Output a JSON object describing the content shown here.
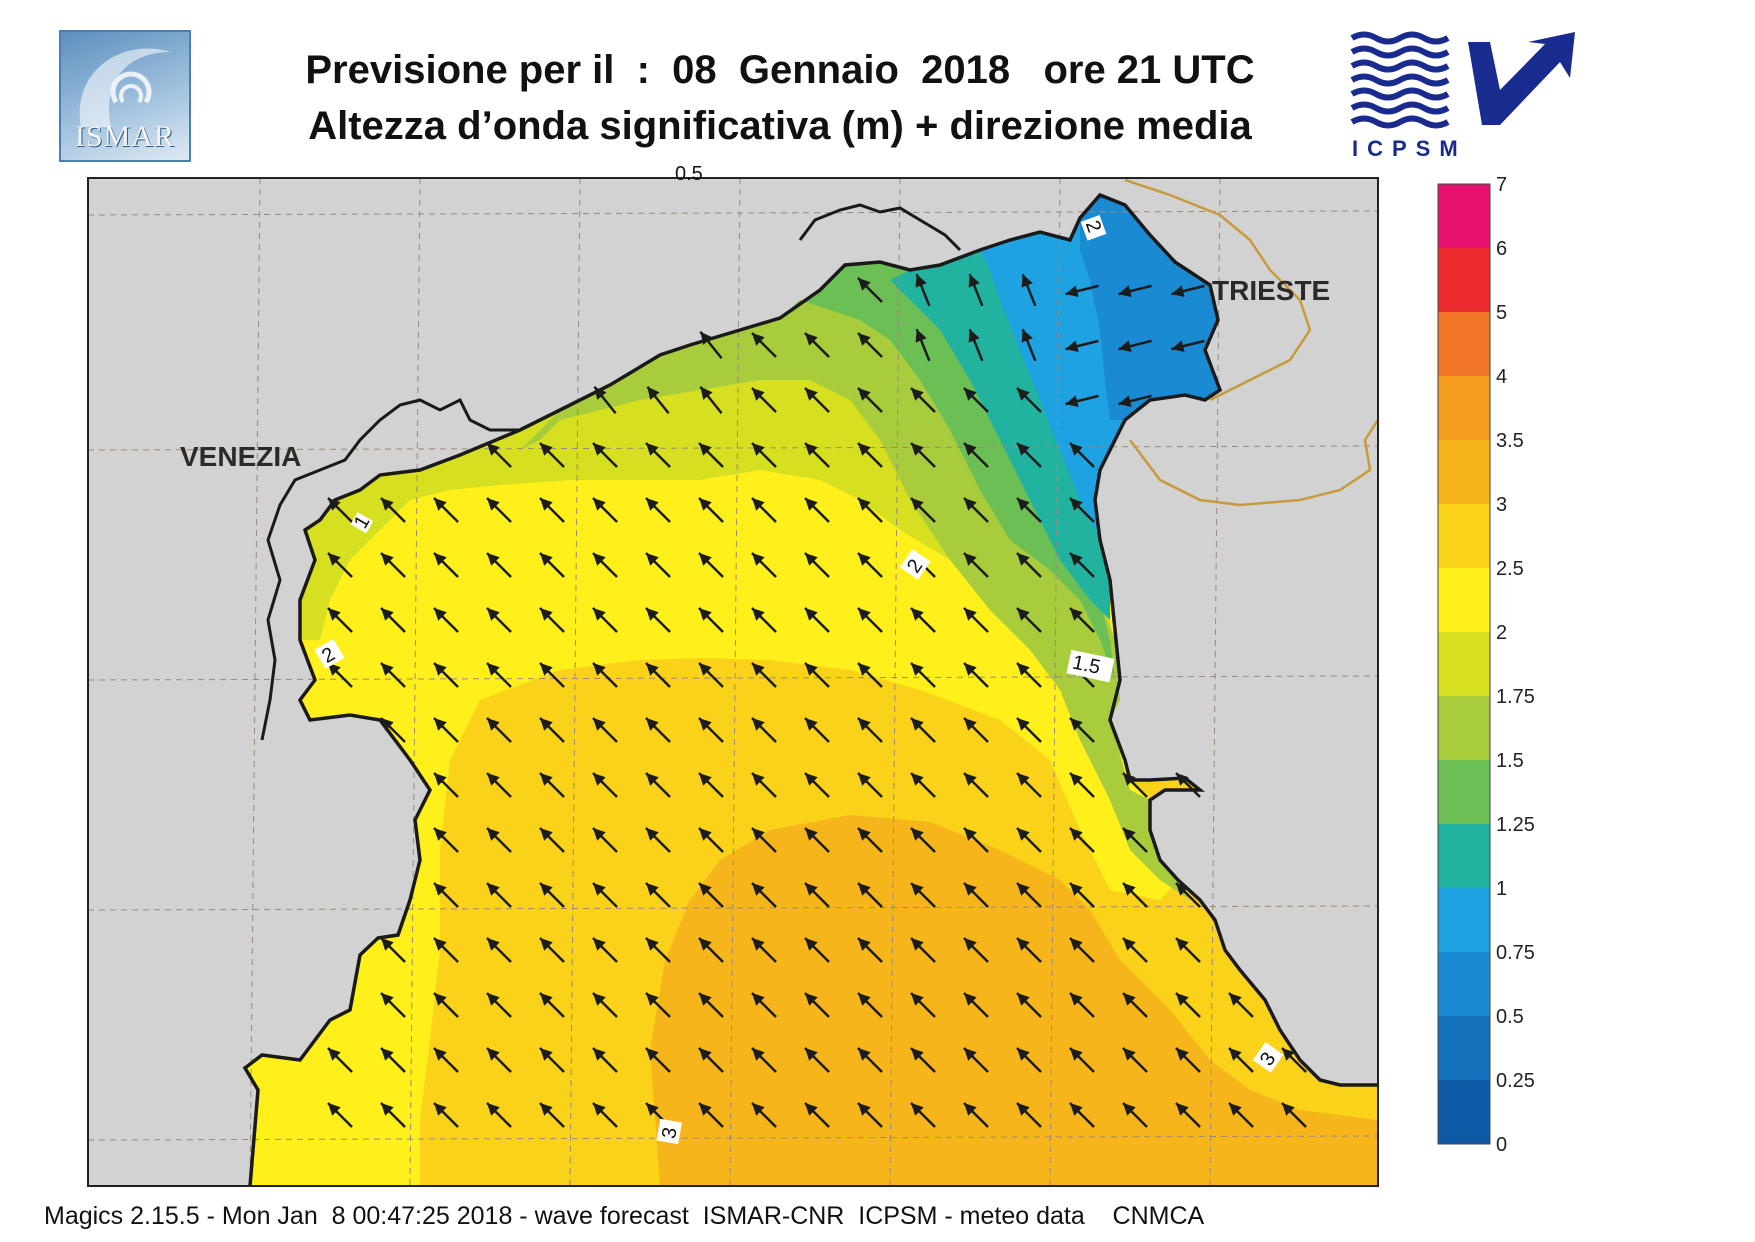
{
  "header": {
    "title_line1": "Previsione per il  :  08  Gennaio  2018   ore 21 UTC",
    "title_line2": "Altezza d’onda significativa (m) + direzione media"
  },
  "logos": {
    "left": {
      "icon": "ismar-logo-icon",
      "text": "ISMAR"
    },
    "right": {
      "icon": "icpsm-logo-icon",
      "text": "ICPSM"
    }
  },
  "map": {
    "cities": [
      {
        "name": "VENEZIA"
      },
      {
        "name": "TRIESTE"
      }
    ],
    "contour_labels": [
      "0.5",
      "2",
      "1",
      "2",
      "1.5",
      "2",
      "3",
      "3"
    ],
    "colors": {
      "land": "#d2d2d2",
      "coast": "#1a1a1a",
      "border": "#c89a3c",
      "grid": "#9a8a7a",
      "arrow": "#1c1c1c"
    }
  },
  "colorbar": {
    "levels": [
      "7",
      "6",
      "5",
      "4",
      "3.5",
      "3",
      "2.5",
      "2",
      "1.75",
      "1.5",
      "1.25",
      "1",
      "0.75",
      "0.5",
      "0.25",
      "0"
    ],
    "colors": [
      "#e8136e",
      "#ec2c2c",
      "#f07628",
      "#f39c1e",
      "#f7b51c",
      "#fbd21a",
      "#fff01c",
      "#d6e020",
      "#a8cc3c",
      "#6bbf54",
      "#22b2a0",
      "#1ea2e2",
      "#1a8ad2",
      "#1472bc",
      "#0f5aa6"
    ]
  },
  "footer": {
    "text": "Magics 2.15.5 - Mon Jan  8 00:47:25 2018 - wave forecast  ISMAR-CNR  ICPSM - meteo data    CNMCA"
  }
}
